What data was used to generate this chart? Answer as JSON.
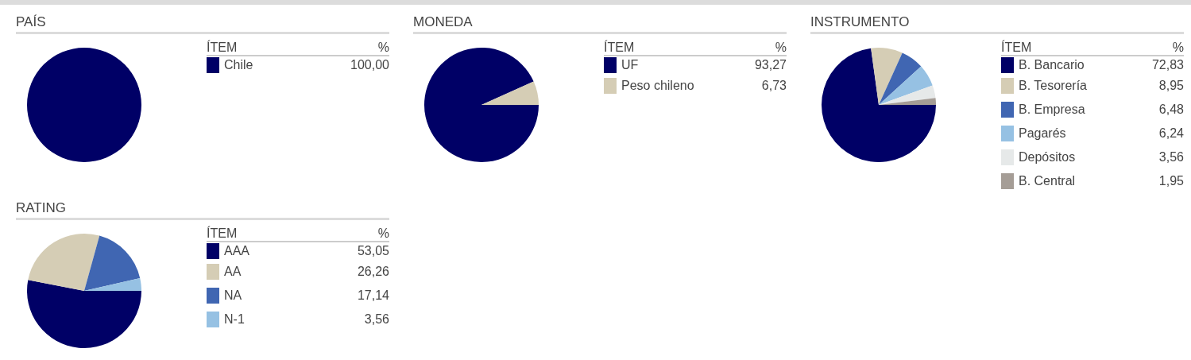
{
  "chart_data": [
    {
      "type": "pie",
      "title": "PAÍS",
      "categories": [
        "Chile"
      ],
      "values": [
        100.0
      ],
      "colors": [
        "#000066"
      ],
      "legend": "right",
      "value_labels": [
        "100,00"
      ],
      "annotations": [
        "ÍTEM",
        "%"
      ]
    },
    {
      "type": "pie",
      "title": "MONEDA",
      "categories": [
        "UF",
        "Peso chileno"
      ],
      "values": [
        93.27,
        6.73
      ],
      "colors": [
        "#000066",
        "#d5cdb5"
      ],
      "legend": "right",
      "value_labels": [
        "93,27",
        "6,73"
      ],
      "annotations": [
        "ÍTEM",
        "%"
      ]
    },
    {
      "type": "pie",
      "title": "INSTRUMENTO",
      "categories": [
        "B. Bancario",
        "B. Tesorería",
        "B. Empresa",
        "Pagarés",
        "Depósitos",
        "B. Central"
      ],
      "values": [
        72.83,
        8.95,
        6.48,
        6.24,
        3.56,
        1.95
      ],
      "colors": [
        "#000066",
        "#d5cdb5",
        "#4066b2",
        "#96c1e3",
        "#e6e9e9",
        "#a59d96"
      ],
      "legend": "right",
      "value_labels": [
        "72,83",
        "8,95",
        "6,48",
        "6,24",
        "3,56",
        "1,95"
      ],
      "annotations": [
        "ÍTEM",
        "%"
      ]
    },
    {
      "type": "pie",
      "title": "RATING",
      "categories": [
        "AAA",
        "AA",
        "NA",
        "N-1"
      ],
      "values": [
        53.05,
        26.26,
        17.14,
        3.56
      ],
      "colors": [
        "#000066",
        "#d5cdb5",
        "#4066b2",
        "#96c1e3"
      ],
      "legend": "right",
      "value_labels": [
        "53,05",
        "26,26",
        "17,14",
        "3,56"
      ],
      "annotations": [
        "ÍTEM",
        "%"
      ]
    }
  ]
}
